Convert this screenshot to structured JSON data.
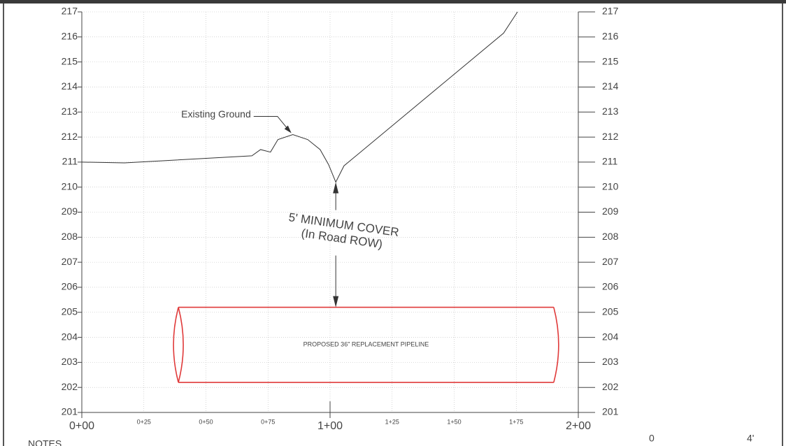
{
  "chart_data": {
    "type": "line",
    "series": [
      {
        "name": "Existing Ground",
        "color": "#333333",
        "x": [
          0,
          17.2,
          68.5,
          72,
          76,
          79,
          85,
          91,
          96,
          99.4,
          102.3,
          105.6,
          169.9,
          175.5
        ],
        "values": [
          211.0,
          210.97,
          211.25,
          211.5,
          211.4,
          211.9,
          212.1,
          211.9,
          211.5,
          210.9,
          210.2,
          210.85,
          216.15,
          217.0
        ]
      }
    ],
    "xlim": [
      0,
      200
    ],
    "xticks": [
      {
        "value": 0,
        "label": "0+00"
      },
      {
        "value": 25,
        "label": "0+25"
      },
      {
        "value": 50,
        "label": "0+50"
      },
      {
        "value": 75,
        "label": "0+75"
      },
      {
        "value": 100,
        "label": "1+00"
      },
      {
        "value": 125,
        "label": "1+25"
      },
      {
        "value": 150,
        "label": "1+50"
      },
      {
        "value": 175,
        "label": "1+75"
      },
      {
        "value": 200,
        "label": "2+00"
      }
    ],
    "ylim": [
      201,
      217
    ],
    "yticks": [
      201,
      202,
      203,
      204,
      205,
      206,
      207,
      208,
      209,
      210,
      211,
      212,
      213,
      214,
      215,
      216,
      217
    ],
    "grid": true,
    "pipeline": {
      "label": "PROPOSED 36\" REPLACEMENT PIPELINE",
      "x": [
        38.9,
        190.1
      ],
      "top": 205.2,
      "bottom": 202.2,
      "color": "#e03a3a"
    },
    "cover_annotation": [
      "5' MINIMUM COVER",
      "(In Road ROW)"
    ],
    "footer": {
      "notes": "NOTES",
      "scale_labels": [
        "0",
        "4'"
      ]
    }
  }
}
